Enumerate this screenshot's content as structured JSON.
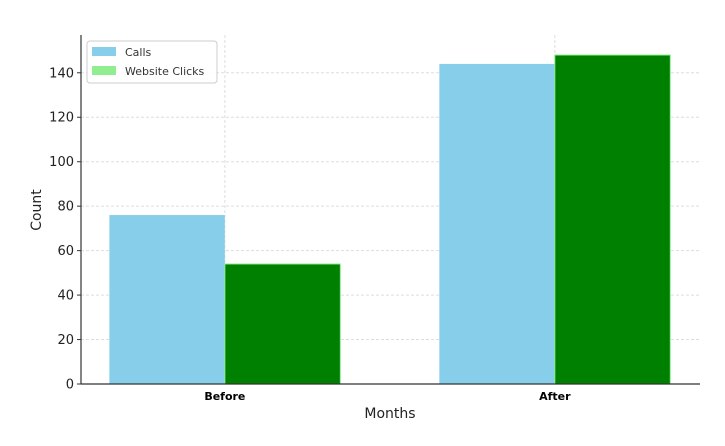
{
  "chart_data": {
    "type": "bar",
    "title": "",
    "xlabel": "Months",
    "ylabel": "Count",
    "categories": [
      "Before",
      "After"
    ],
    "series": [
      {
        "name": "Calls",
        "values": [
          76,
          144
        ],
        "color": "#87CEEB"
      },
      {
        "name": "Website Clicks",
        "values": [
          54,
          148
        ],
        "color": "#008000",
        "legend_color": "#90EE90"
      }
    ],
    "ylim": [
      0,
      157
    ],
    "yticks": [
      0,
      20,
      40,
      60,
      80,
      100,
      120,
      140
    ],
    "grid": true,
    "legend_position": "top-left"
  }
}
